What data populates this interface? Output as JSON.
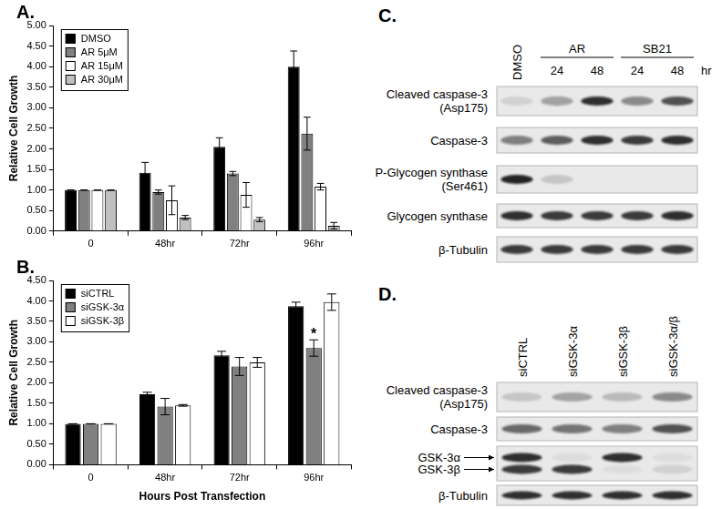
{
  "chart_data": [
    {
      "type": "bar",
      "title": "A.",
      "categories": [
        "0",
        "48hr",
        "72hr",
        "96hr"
      ],
      "series": [
        {
          "name": "DMSO",
          "color": "#000000",
          "values": [
            1.0,
            1.42,
            2.05,
            4.0
          ],
          "errors": [
            0,
            0.25,
            0.22,
            0.38
          ]
        },
        {
          "name": "AR 5μM",
          "color": "#808080",
          "values": [
            1.0,
            0.95,
            1.4,
            2.37
          ],
          "errors": [
            0,
            0.05,
            0.05,
            0.4
          ]
        },
        {
          "name": "AR 15μM",
          "color": "#ffffff",
          "values": [
            1.0,
            0.75,
            0.88,
            1.08
          ],
          "errors": [
            0,
            0.35,
            0.3,
            0.08
          ]
        },
        {
          "name": "AR 30μM",
          "color": "#c0c0c0",
          "values": [
            1.0,
            0.33,
            0.28,
            0.13
          ],
          "errors": [
            0,
            0.05,
            0.05,
            0.08
          ]
        }
      ],
      "y_label": "Relative Cell Growth",
      "ylim": [
        0,
        5
      ],
      "yticks": [
        {
          "value": 0,
          "label": "0.00"
        },
        {
          "value": 0.5,
          "label": "0.50"
        },
        {
          "value": 1,
          "label": "1.00"
        },
        {
          "value": 1.5,
          "label": "1.50"
        },
        {
          "value": 2,
          "label": "2.00"
        },
        {
          "value": 2.5,
          "label": "2.50"
        },
        {
          "value": 3,
          "label": "3.00"
        },
        {
          "value": 3.5,
          "label": "3.50"
        },
        {
          "value": 4,
          "label": "4.00"
        },
        {
          "value": 4.5,
          "label": "4.50"
        },
        {
          "value": 5,
          "label": "5.00"
        }
      ],
      "grid": false,
      "legend": "upper left"
    },
    {
      "type": "bar",
      "title": "B.",
      "categories": [
        "0",
        "48hr",
        "72hr",
        "96hr"
      ],
      "series": [
        {
          "name": "siCTRL",
          "color": "#000000",
          "values": [
            1.0,
            1.72,
            2.67,
            3.87
          ],
          "errors": [
            0,
            0.05,
            0.1,
            0.1
          ]
        },
        {
          "name": "siGSK-3α",
          "color": "#808080",
          "values": [
            1.0,
            1.42,
            2.4,
            2.85
          ],
          "errors": [
            0,
            0.2,
            0.22,
            0.2
          ]
        },
        {
          "name": "siGSK-3β",
          "color": "#ffffff",
          "values": [
            1.0,
            1.45,
            2.5,
            3.97
          ],
          "errors": [
            0,
            0.02,
            0.12,
            0.2
          ]
        }
      ],
      "x_label": "Hours Post Transfection",
      "y_label": "Relative Cell Growth",
      "ylim": [
        0,
        4.5
      ],
      "yticks": [
        {
          "value": 0,
          "label": "0.00"
        },
        {
          "value": 0.5,
          "label": "0.50"
        },
        {
          "value": 1,
          "label": "1.00"
        },
        {
          "value": 1.5,
          "label": "1.50"
        },
        {
          "value": 2,
          "label": "2.00"
        },
        {
          "value": 2.5,
          "label": "2.50"
        },
        {
          "value": 3,
          "label": "3.00"
        },
        {
          "value": 3.5,
          "label": "3.50"
        },
        {
          "value": 4,
          "label": "4.00"
        },
        {
          "value": 4.5,
          "label": "4.50"
        }
      ],
      "annotations": [
        {
          "text": "*",
          "category": "96hr",
          "series": "siGSK-3α"
        }
      ],
      "grid": false,
      "legend": "upper left"
    }
  ],
  "blots": [
    {
      "title": "C.",
      "unit": "hr",
      "lanes": [
        {
          "label": "DMSO"
        },
        {
          "group": "AR",
          "label": "24"
        },
        {
          "group": "AR",
          "label": "48"
        },
        {
          "group": "SB21",
          "label": "24"
        },
        {
          "group": "SB21",
          "label": "48"
        }
      ],
      "rows": [
        {
          "label": [
            "Cleaved caspase-3",
            "(Asp175)"
          ],
          "intensity": [
            0.1,
            0.35,
            0.85,
            0.45,
            0.7
          ]
        },
        {
          "label": [
            "Caspase-3"
          ],
          "intensity": [
            0.5,
            0.65,
            0.85,
            0.8,
            0.85
          ]
        },
        {
          "label": [
            "P-Glycogen synthase",
            "(Ser461)"
          ],
          "intensity": [
            0.9,
            0.15,
            0,
            0,
            0
          ]
        },
        {
          "label": [
            "Glycogen synthase"
          ],
          "intensity": [
            0.85,
            0.8,
            0.8,
            0.8,
            0.85
          ]
        },
        {
          "label": [
            "β-Tubulin"
          ],
          "intensity": [
            0.8,
            0.8,
            0.8,
            0.8,
            0.8
          ]
        }
      ]
    },
    {
      "title": "D.",
      "lanes": [
        {
          "label": "siCTRL"
        },
        {
          "label": "siGSK-3α"
        },
        {
          "label": "siGSK-3β"
        },
        {
          "label": "siGSK-3α/β"
        }
      ],
      "rows": [
        {
          "label": [
            "Cleaved caspase-3",
            "(Asp175)"
          ],
          "intensity": [
            0.15,
            0.3,
            0.2,
            0.45
          ]
        },
        {
          "label": [
            "Caspase-3"
          ],
          "intensity": [
            0.6,
            0.55,
            0.5,
            0.7
          ]
        },
        {
          "bands": [
            {
              "label": "GSK-3α",
              "intensity": [
                0.85,
                0.05,
                0.85,
                0.05
              ]
            },
            {
              "label": "GSK-3β",
              "intensity": [
                0.8,
                0.8,
                0.05,
                0.1
              ]
            }
          ]
        },
        {
          "label": [
            "β-Tubulin"
          ],
          "intensity": [
            0.85,
            0.85,
            0.85,
            0.85
          ]
        }
      ]
    }
  ]
}
